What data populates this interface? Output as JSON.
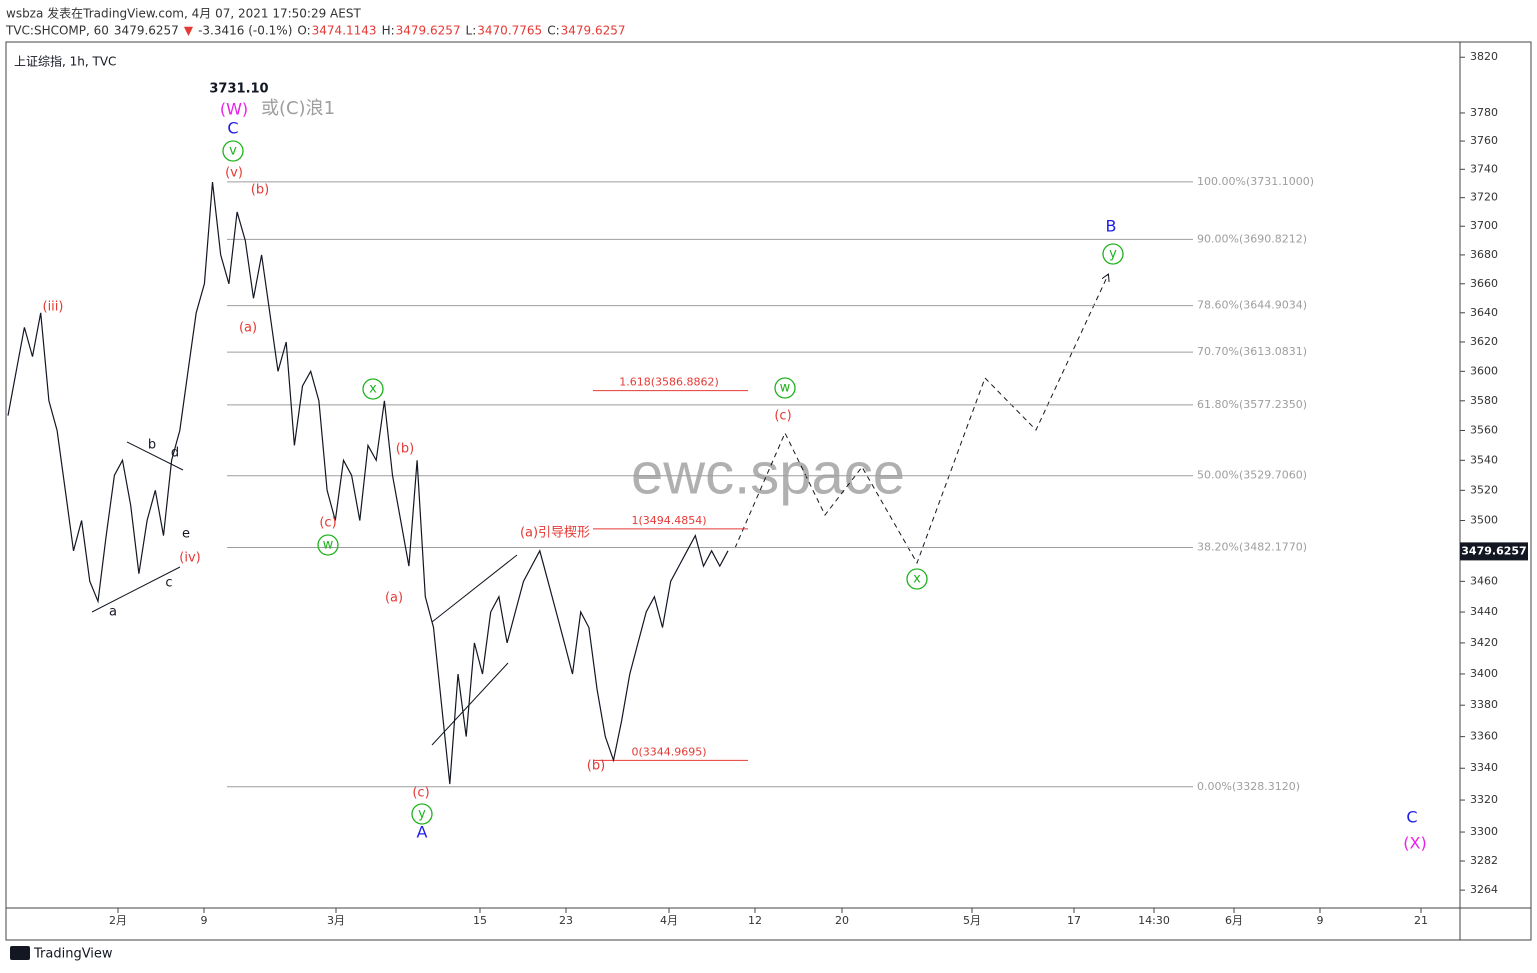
{
  "chart_data": {
    "type": "line",
    "header": "wsbza 发表在TradingView.com, 4月 07, 2021 17:50:29 AEST",
    "quote": [
      {
        "text": "TVC:SHCOMP, 60",
        "color": "#333333"
      },
      {
        "text": "3479.6257",
        "color": "#333333"
      },
      {
        "text": "▼",
        "color": "#e53935"
      },
      {
        "text": "-3.3416 (-0.1%)",
        "color": "#333333"
      },
      {
        "text": "O:",
        "color": "#333333"
      },
      {
        "text": "3474.1143",
        "color": "#e53935"
      },
      {
        "text": "H:",
        "color": "#333333"
      },
      {
        "text": "3479.6257",
        "color": "#e53935"
      },
      {
        "text": "L:",
        "color": "#333333"
      },
      {
        "text": "3470.7765",
        "color": "#e53935"
      },
      {
        "text": "C:",
        "color": "#333333"
      },
      {
        "text": "3479.6257",
        "color": "#e53935"
      }
    ],
    "title": "上证综指, 1h, TVC",
    "watermark": "ewc.space",
    "footer": "TradingView",
    "log_scale": true,
    "ylim": [
      3253,
      3831
    ],
    "yticks": [
      3820,
      3780,
      3760,
      3740,
      3720,
      3700,
      3680,
      3660,
      3640,
      3620,
      3600,
      3580,
      3560,
      3540,
      3520,
      3500,
      3460,
      3440,
      3420,
      3400,
      3380,
      3360,
      3340,
      3320,
      3300,
      3282,
      3264
    ],
    "x_labels": [
      "2月",
      "9",
      "3月",
      "15",
      "23",
      "4月",
      "12",
      "20",
      "5月",
      "17",
      "14:30",
      "6月",
      "9",
      "21"
    ],
    "last_price": 3479.6257,
    "last_price_label": "3479.6257",
    "series": [
      {
        "name": "SHCOMP",
        "color": "#131722",
        "values": [
          3570,
          3600,
          3630,
          3610,
          3640,
          3580,
          3560,
          3520,
          3480,
          3500,
          3460,
          3447,
          3490,
          3530,
          3540,
          3510,
          3465,
          3500,
          3520,
          3490,
          3540,
          3560,
          3600,
          3640,
          3660,
          3731,
          3680,
          3660,
          3710,
          3690,
          3650,
          3680,
          3640,
          3600,
          3620,
          3550,
          3590,
          3600,
          3580,
          3520,
          3500,
          3540,
          3530,
          3500,
          3550,
          3540,
          3580,
          3530,
          3500,
          3470,
          3540,
          3450,
          3430,
          3380,
          3330,
          3400,
          3360,
          3420,
          3400,
          3440,
          3450,
          3420,
          3440,
          3460,
          3470,
          3480,
          3460,
          3440,
          3420,
          3400,
          3440,
          3430,
          3390,
          3360,
          3345,
          3370,
          3400,
          3420,
          3440,
          3450,
          3430,
          3460,
          3470,
          3480,
          3490,
          3470,
          3480,
          3470,
          3480
        ]
      }
    ],
    "fib_levels": [
      {
        "level": 3731.1,
        "label": "100.00%(3731.1000)"
      },
      {
        "level": 3690.8212,
        "label": "90.00%(3690.8212)"
      },
      {
        "level": 3644.9034,
        "label": "78.60%(3644.9034)"
      },
      {
        "level": 3613.0831,
        "label": "70.70%(3613.0831)"
      },
      {
        "level": 3577.235,
        "label": "61.80%(3577.2350)"
      },
      {
        "level": 3529.706,
        "label": "50.00%(3529.7060)"
      },
      {
        "level": 3482.177,
        "label": "38.20%(3482.1770)"
      },
      {
        "level": 3328.312,
        "label": "0.00%(3328.3120)"
      }
    ],
    "fib_color": "#9e9e9e",
    "ext_levels": [
      {
        "level": 3586.8862,
        "label": "1.618(3586.8862)"
      },
      {
        "level": 3494.4854,
        "label": "1(3494.4854)"
      },
      {
        "level": 3344.9695,
        "label": "0(3344.9695)"
      }
    ],
    "ext_color": "#e53935",
    "annotations": [
      {
        "text": "3731.10",
        "color": "#131722",
        "circled": false
      },
      {
        "text": "(W)",
        "color": "#e91ee9",
        "circled": false
      },
      {
        "text": "或(C)浪1",
        "color": "#9e9e9e",
        "circled": false
      },
      {
        "text": "C",
        "color": "#1e1ee9",
        "circled": false
      },
      {
        "text": "v",
        "color": "#1db31d",
        "circled": true
      },
      {
        "text": "(v)",
        "color": "#e53935",
        "circled": false
      },
      {
        "text": "(b)",
        "color": "#e53935",
        "circled": false
      },
      {
        "text": "(a)",
        "color": "#e53935",
        "circled": false
      },
      {
        "text": "(iii)",
        "color": "#e53935",
        "circled": false
      },
      {
        "text": "b",
        "color": "#131722",
        "circled": false
      },
      {
        "text": "d",
        "color": "#131722",
        "circled": false
      },
      {
        "text": "e",
        "color": "#131722",
        "circled": false
      },
      {
        "text": "c",
        "color": "#131722",
        "circled": false
      },
      {
        "text": "a",
        "color": "#131722",
        "circled": false
      },
      {
        "text": "(iv)",
        "color": "#e53935",
        "circled": false
      },
      {
        "text": "x",
        "color": "#1db31d",
        "circled": true
      },
      {
        "text": "(c)",
        "color": "#e53935",
        "circled": false
      },
      {
        "text": "w",
        "color": "#1db31d",
        "circled": true
      },
      {
        "text": "(b)",
        "color": "#e53935",
        "circled": false
      },
      {
        "text": "(a)",
        "color": "#e53935",
        "circled": false
      },
      {
        "text": "(c)",
        "color": "#e53935",
        "circled": false
      },
      {
        "text": "y",
        "color": "#1db31d",
        "circled": true
      },
      {
        "text": "A",
        "color": "#1e1ee9",
        "circled": false
      },
      {
        "text": "(a)引导楔形",
        "color": "#e53935",
        "circled": false
      },
      {
        "text": "(b)",
        "color": "#e53935",
        "circled": false
      },
      {
        "text": "w",
        "color": "#1db31d",
        "circled": true
      },
      {
        "text": "(c)",
        "color": "#e53935",
        "circled": false
      },
      {
        "text": "x",
        "color": "#1db31d",
        "circled": true
      },
      {
        "text": "B",
        "color": "#1e1ee9",
        "circled": false
      },
      {
        "text": "y",
        "color": "#1db31d",
        "circled": true
      },
      {
        "text": "C",
        "color": "#1e1ee9",
        "circled": false
      },
      {
        "text": "(X)",
        "color": "#e91ee9",
        "circled": false
      }
    ]
  }
}
